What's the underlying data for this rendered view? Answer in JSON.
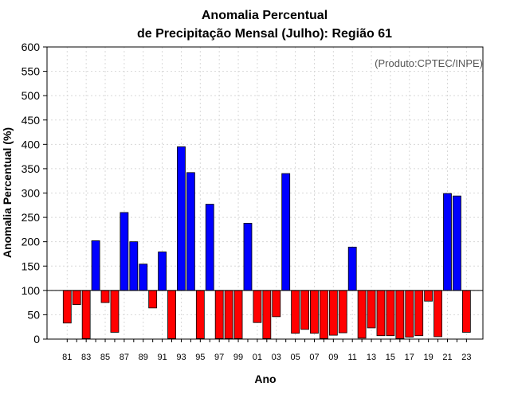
{
  "chart_data": {
    "type": "bar",
    "title_line1": "Anomalia Percentual",
    "title_line2": "de Precipitação Mensal (Julho): Região 61",
    "xlabel": "Ano",
    "ylabel": "Anomalia Percentual (%)",
    "annotation": "(Produto:CPTEC/INPE)",
    "ylim": [
      0,
      600
    ],
    "baseline": 100,
    "yticks": [
      "0",
      "50",
      "100",
      "150",
      "200",
      "250",
      "300",
      "350",
      "400",
      "450",
      "500",
      "550",
      "600"
    ],
    "categories": [
      "81",
      "82",
      "83",
      "84",
      "85",
      "86",
      "87",
      "88",
      "89",
      "90",
      "91",
      "92",
      "93",
      "94",
      "95",
      "96",
      "97",
      "98",
      "99",
      "00",
      "01",
      "02",
      "03",
      "04",
      "05",
      "06",
      "07",
      "08",
      "09",
      "10",
      "11",
      "12",
      "13",
      "14",
      "15",
      "16",
      "17",
      "18",
      "19",
      "20",
      "21",
      "22",
      "23"
    ],
    "xtick_labels": [
      "81",
      "83",
      "85",
      "87",
      "89",
      "91",
      "93",
      "95",
      "97",
      "99",
      "01",
      "03",
      "05",
      "07",
      "09",
      "11",
      "13",
      "15",
      "17",
      "19",
      "21",
      "23"
    ],
    "values": [
      33,
      71,
      1,
      202,
      75,
      14,
      260,
      200,
      154,
      64,
      179,
      1,
      395,
      342,
      1,
      277,
      1,
      1,
      1,
      238,
      34,
      1,
      46,
      340,
      12,
      20,
      12,
      1,
      8,
      13,
      189,
      2,
      23,
      7,
      7,
      1,
      4,
      7,
      78,
      5,
      299,
      294,
      14
    ],
    "colors": {
      "above": "#0000ff",
      "below": "#ff0000",
      "border": "#000000"
    }
  }
}
